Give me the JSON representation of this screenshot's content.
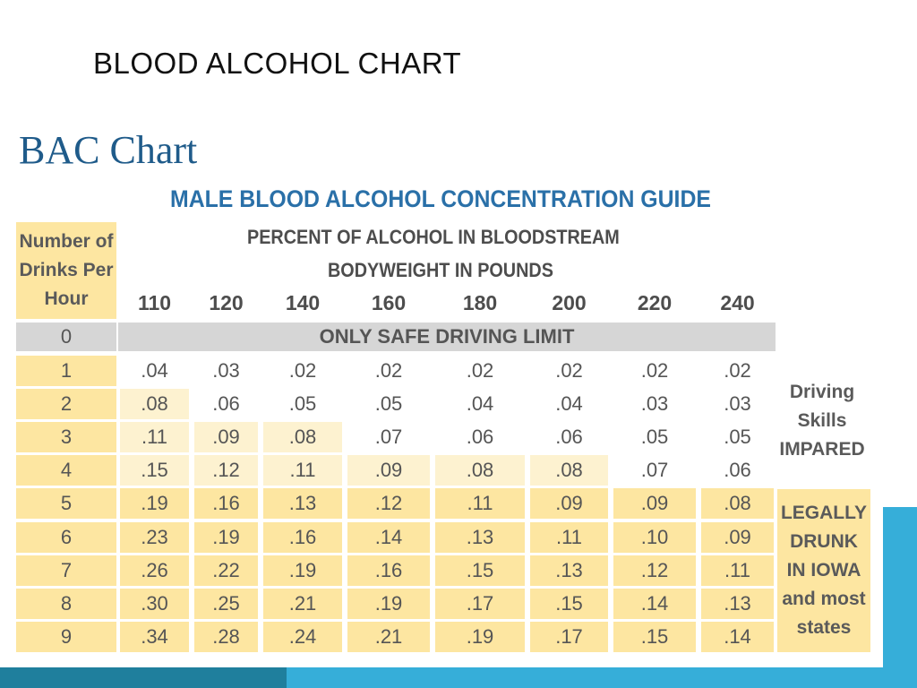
{
  "slide_title": "BLOOD ALCOHOL CHART",
  "chart_data": {
    "type": "table",
    "heading": "BAC Chart",
    "title": "MALE BLOOD ALCOHOL CONCENTRATION GUIDE",
    "subtitle": "PERCENT OF ALCOHOL IN BLOODSTREAM",
    "column_group_label": "BODYWEIGHT IN POUNDS",
    "row_header_label": [
      "Number of",
      "Drinks Per",
      "Hour"
    ],
    "weights": [
      "110",
      "120",
      "140",
      "160",
      "180",
      "200",
      "220",
      "240"
    ],
    "zero_row": {
      "drinks": "0",
      "label": "ONLY SAFE DRIVING LIMIT"
    },
    "rows": [
      {
        "drinks": "1",
        "values": [
          ".04",
          ".03",
          ".02",
          ".02",
          ".02",
          ".02",
          ".02",
          ".02"
        ],
        "zones": [
          "n",
          "n",
          "n",
          "n",
          "n",
          "n",
          "n",
          "n"
        ]
      },
      {
        "drinks": "2",
        "values": [
          ".08",
          ".06",
          ".05",
          ".05",
          ".04",
          ".04",
          ".03",
          ".03"
        ],
        "zones": [
          "d",
          "n",
          "n",
          "n",
          "n",
          "n",
          "n",
          "n"
        ]
      },
      {
        "drinks": "3",
        "values": [
          ".11",
          ".09",
          ".08",
          ".07",
          ".06",
          ".06",
          ".05",
          ".05"
        ],
        "zones": [
          "d",
          "d",
          "d",
          "n",
          "n",
          "n",
          "n",
          "n"
        ]
      },
      {
        "drinks": "4",
        "values": [
          ".15",
          ".12",
          ".11",
          ".09",
          ".08",
          ".08",
          ".07",
          ".06"
        ],
        "zones": [
          "d",
          "d",
          "d",
          "d",
          "d",
          "d",
          "n",
          "n"
        ]
      },
      {
        "drinks": "5",
        "values": [
          ".19",
          ".16",
          ".13",
          ".12",
          ".11",
          ".09",
          ".09",
          ".08"
        ],
        "zones": [
          "d",
          "d",
          "d",
          "d",
          "d",
          "d",
          "d",
          "d"
        ]
      },
      {
        "drinks": "6",
        "values": [
          ".23",
          ".19",
          ".16",
          ".14",
          ".13",
          ".11",
          ".10",
          ".09"
        ],
        "zones": [
          "d",
          "d",
          "d",
          "d",
          "d",
          "d",
          "d",
          "d"
        ]
      },
      {
        "drinks": "7",
        "values": [
          ".26",
          ".22",
          ".19",
          ".16",
          ".15",
          ".13",
          ".12",
          ".11"
        ],
        "zones": [
          "d",
          "d",
          "d",
          "d",
          "d",
          "d",
          "d",
          "d"
        ]
      },
      {
        "drinks": "8",
        "values": [
          ".30",
          ".25",
          ".21",
          ".19",
          ".17",
          ".15",
          ".14",
          ".13"
        ],
        "zones": [
          "d",
          "d",
          "d",
          "d",
          "d",
          "d",
          "d",
          "d"
        ]
      },
      {
        "drinks": "9",
        "values": [
          ".34",
          ".28",
          ".24",
          ".21",
          ".19",
          ".17",
          ".15",
          ".14"
        ],
        "zones": [
          "d",
          "d",
          "d",
          "d",
          "d",
          "d",
          "d",
          "d"
        ]
      }
    ],
    "side_labels": {
      "impaired": [
        "Driving",
        "Skills",
        "IMPARED"
      ],
      "drunk": [
        "LEGALLY",
        "DRUNK",
        "IN IOWA",
        "and most",
        "states"
      ]
    },
    "colors": {
      "header_fill": "#fde6a1",
      "drunk_fill": "#fde6a1",
      "impaired_fill": "#fdf2d0",
      "safe_fill": "#d6d6d6",
      "title_blue": "#2a70a8"
    }
  }
}
